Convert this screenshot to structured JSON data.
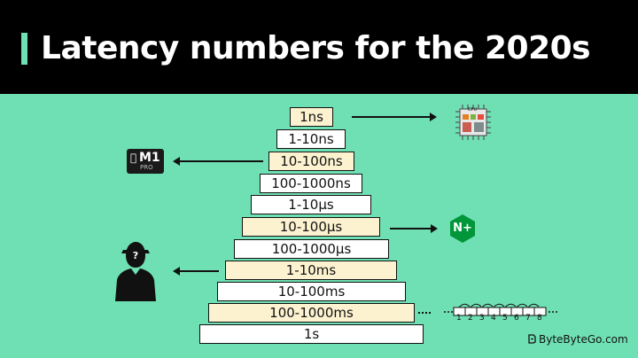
{
  "header": {
    "title": "Latency numbers for the 2020s"
  },
  "pyramid": {
    "steps": [
      {
        "label": "1ns"
      },
      {
        "label": "1-10ns"
      },
      {
        "label": "10-100ns"
      },
      {
        "label": "100-1000ns"
      },
      {
        "label": "1-10μs"
      },
      {
        "label": "10-100μs"
      },
      {
        "label": "100-1000μs"
      },
      {
        "label": "1-10ms"
      },
      {
        "label": "10-100ms"
      },
      {
        "label": "100-1000ms"
      },
      {
        "label": "1s"
      }
    ]
  },
  "icons": {
    "cpu": {
      "name": "cpu-chip-icon",
      "label": "CPU"
    },
    "m1": {
      "name": "apple-m1-pro-chip-icon",
      "brand_text": "M1",
      "sub_text": "PRO"
    },
    "nginx": {
      "name": "nginx-plus-icon",
      "text": "N+"
    },
    "person": {
      "name": "mystery-person-icon",
      "mark": "?"
    },
    "disk": {
      "name": "disk-blocks-icon",
      "numbers": [
        "1",
        "2",
        "3",
        "4",
        "5",
        "6",
        "7",
        "8"
      ]
    }
  },
  "watermark": {
    "text": "ByteByteGo.com"
  },
  "colors": {
    "background": "#6fe0b4",
    "header": "#000000",
    "step_fill_cream": "#fdf2d0",
    "step_fill_white": "#ffffff",
    "nginx_green": "#009639"
  }
}
